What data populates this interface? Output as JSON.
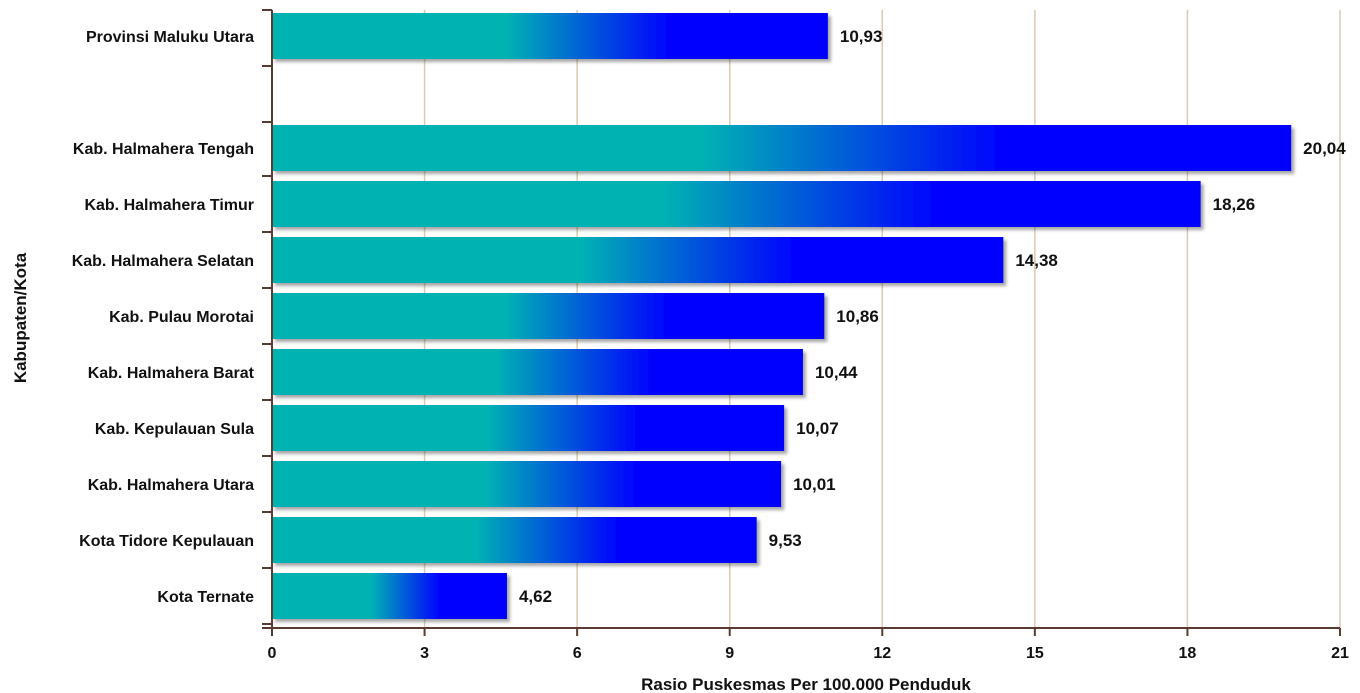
{
  "chart_data": {
    "type": "bar",
    "orientation": "horizontal",
    "title": "",
    "xlabel": "Rasio Puskesmas Per 100.000 Penduduk",
    "ylabel": "Kabupaten/Kota",
    "xlim": [
      0,
      21
    ],
    "xticks": [
      0,
      3,
      6,
      9,
      12,
      15,
      18,
      21
    ],
    "grid": "vertical",
    "bar_colors": {
      "start": "#00b3b3",
      "end": "#0000ff"
    },
    "categories": [
      "Provinsi Maluku Utara",
      "Kab. Halmahera Tengah",
      "Kab. Halmahera Timur",
      "Kab. Halmahera Selatan",
      "Kab. Pulau Morotai",
      "Kab. Halmahera Barat",
      "Kab. Kepulauan Sula",
      "Kab. Halmahera Utara",
      "Kota Tidore Kepulauan",
      "Kota Ternate"
    ],
    "values": [
      10.93,
      20.04,
      18.26,
      14.38,
      10.86,
      10.44,
      10.07,
      10.01,
      9.53,
      4.62
    ],
    "value_labels": [
      "10,93",
      "20,04",
      "18,26",
      "14,38",
      "10,86",
      "10,44",
      "10,07",
      "10,01",
      "9,53",
      "4,62"
    ]
  }
}
